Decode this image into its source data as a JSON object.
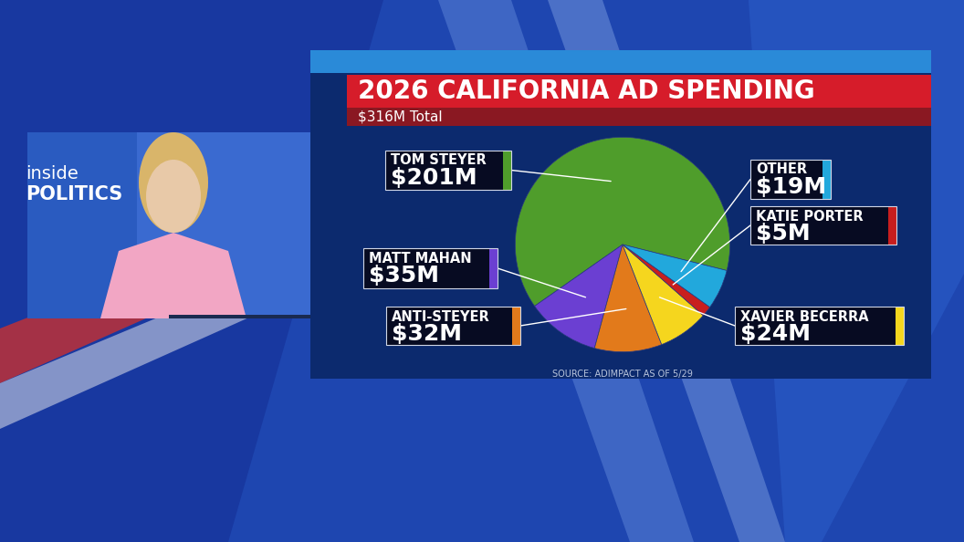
{
  "chart_data": {
    "type": "pie",
    "title": "2026 CALIFORNIA AD SPENDING",
    "subtitle": "$316M Total",
    "categories": [
      "TOM STEYER",
      "MATT MAHAN",
      "ANTI-STEYER",
      "XAVIER BECERRA",
      "KATIE PORTER",
      "OTHER"
    ],
    "values": [
      201,
      35,
      32,
      24,
      5,
      19
    ],
    "value_labels": [
      "$201M",
      "$35M",
      "$32M",
      "$24M",
      "$5M",
      "$19M"
    ],
    "colors": [
      "#4f9d2b",
      "#6b3fd2",
      "#e27a1b",
      "#f5d61e",
      "#c81e1e",
      "#22a8dc"
    ],
    "data_labels": true,
    "annotations": [
      "SOURCE: ADIMPACT AS OF 5/29",
      "inside",
      "POLITICS"
    ]
  }
}
